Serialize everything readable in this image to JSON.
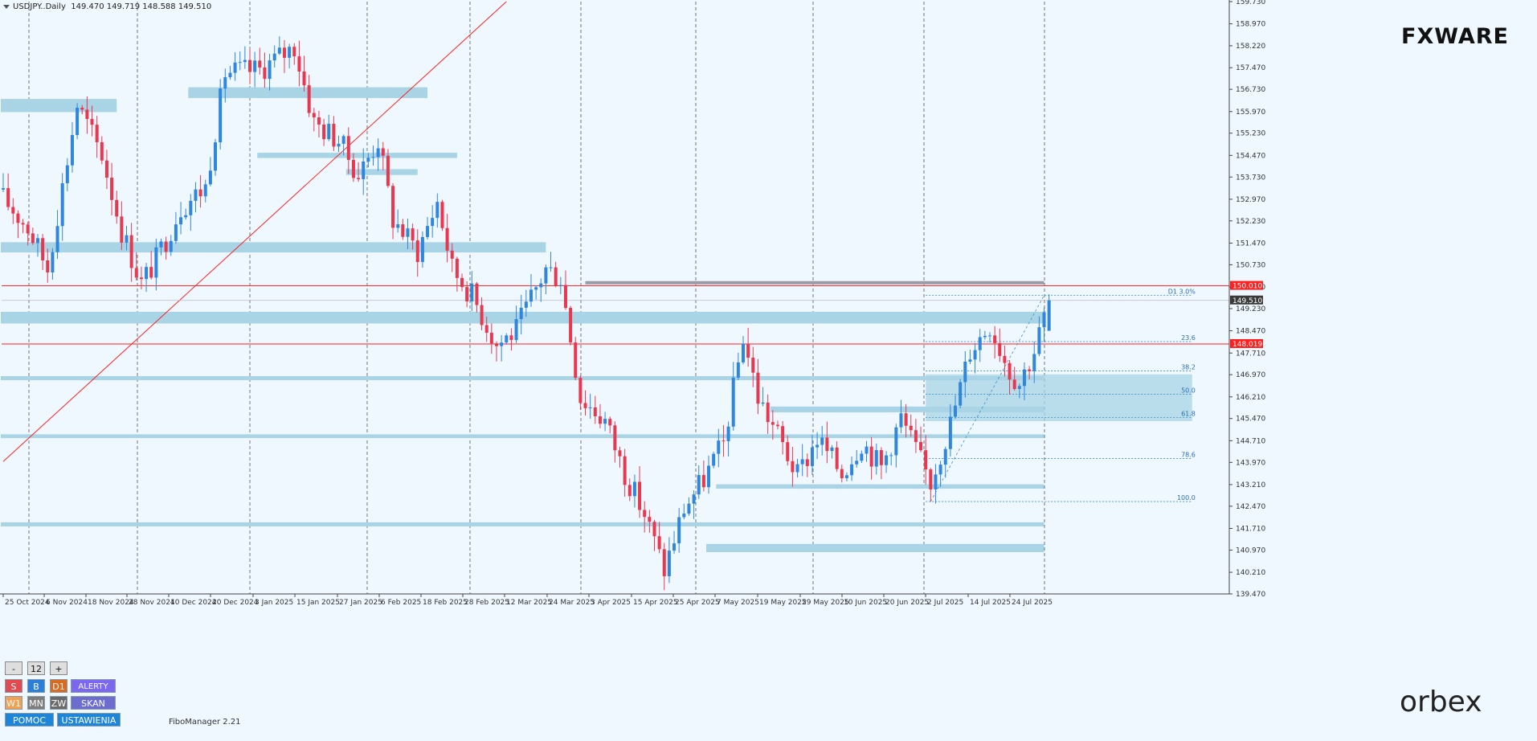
{
  "header": {
    "symbol": "USDJPY..Daily",
    "ohlc": "149.470 149.719 148.588 149.510"
  },
  "branding": {
    "fxware": "FXWARE",
    "orbex": "orbex"
  },
  "plugin_label": "FiboManager 2.21",
  "panel": {
    "minus": "-",
    "count": "12",
    "plus": "+",
    "s": "S",
    "b": "B",
    "d1": "D1",
    "alerty": "ALERTY",
    "w1": "W1",
    "mn": "MN",
    "zw": "ZW",
    "skan": "SKAN",
    "pomoc": "POMOC",
    "ustawienia": "USTAWIENIA"
  },
  "colors": {
    "bull": "#2e86de",
    "bear": "#e8374f",
    "zone": "#a8d4e6",
    "resistance": "#ff2020",
    "background": "#f0f8ff"
  },
  "chart_data": {
    "type": "candlestick",
    "symbol": "USDJPY",
    "timeframe": "Daily",
    "ylim": [
      139.47,
      159.73
    ],
    "y_ticks": [
      "159.730",
      "158.970",
      "158.220",
      "157.470",
      "156.730",
      "155.970",
      "155.230",
      "154.470",
      "153.730",
      "152.970",
      "152.230",
      "151.470",
      "150.730",
      "149.970",
      "149.230",
      "148.470",
      "147.710",
      "146.970",
      "146.210",
      "145.470",
      "144.710",
      "143.970",
      "143.210",
      "142.470",
      "141.710",
      "140.970",
      "140.210",
      "139.470"
    ],
    "x_ticks": [
      "25 Oct 2024",
      "6 Nov 2024",
      "18 Nov 2024",
      "28 Nov 2024",
      "10 Dec 2024",
      "20 Dec 2024",
      "3 Jan 2025",
      "15 Jan 2025",
      "27 Jan 2025",
      "6 Feb 2025",
      "18 Feb 2025",
      "28 Feb 2025",
      "12 Mar 2025",
      "24 Mar 2025",
      "3 Apr 2025",
      "15 Apr 2025",
      "25 Apr 2025",
      "7 May 2025",
      "19 May 2025",
      "29 May 2025",
      "10 Jun 2025",
      "20 Jun 2025",
      "2 Jul 2025",
      "14 Jul 2025",
      "24 Jul 2025"
    ],
    "price_labels": [
      {
        "value": 150.01,
        "text": "150.010",
        "color": "#ff2020"
      },
      {
        "value": 149.51,
        "text": "149.510",
        "color": "#3a3a3a"
      },
      {
        "value": 148.019,
        "text": "148.019",
        "color": "#ff2020"
      }
    ],
    "horizontal_lines": [
      150.01,
      148.019
    ],
    "zones": [
      {
        "from_index": 0,
        "to_index": 23,
        "low": 155.95,
        "high": 156.4
      },
      {
        "from_index": 0,
        "to_index": 110,
        "low": 151.15,
        "high": 151.5
      },
      {
        "from_index": 0,
        "to_index": 211,
        "low": 148.72,
        "high": 149.12
      },
      {
        "from_index": 0,
        "to_index": 211,
        "low": 146.78,
        "high": 146.92
      },
      {
        "from_index": 0,
        "to_index": 211,
        "low": 144.8,
        "high": 144.93
      },
      {
        "from_index": 0,
        "to_index": 211,
        "low": 141.78,
        "high": 141.92
      },
      {
        "from_index": 143,
        "to_index": 211,
        "low": 140.9,
        "high": 141.18
      },
      {
        "from_index": 145,
        "to_index": 211,
        "low": 143.07,
        "high": 143.22
      },
      {
        "from_index": 156,
        "to_index": 211,
        "low": 145.68,
        "high": 145.88
      },
      {
        "from_index": 38,
        "to_index": 86,
        "low": 156.43,
        "high": 156.8
      },
      {
        "from_index": 52,
        "to_index": 92,
        "low": 154.38,
        "high": 154.56
      },
      {
        "from_index": 70,
        "to_index": 84,
        "low": 153.8,
        "high": 154.0
      }
    ],
    "fib_box": {
      "from_index": 187,
      "to_index": 241,
      "low": 145.38,
      "high": 146.98
    },
    "fib_levels": [
      {
        "label": "D1 3.0%",
        "value": 149.68
      },
      {
        "label": "23.6",
        "value": 148.1
      },
      {
        "label": "38.2",
        "value": 147.1
      },
      {
        "label": "50.0",
        "value": 146.3
      },
      {
        "label": "61.8",
        "value": 145.5
      },
      {
        "label": "78.6",
        "value": 144.1
      },
      {
        "label": "100.0",
        "value": 142.63
      }
    ],
    "trendline": {
      "start_index": 0,
      "start_value": 144.0,
      "end_index": 102,
      "end_value": 159.73
    },
    "candles": []
  }
}
